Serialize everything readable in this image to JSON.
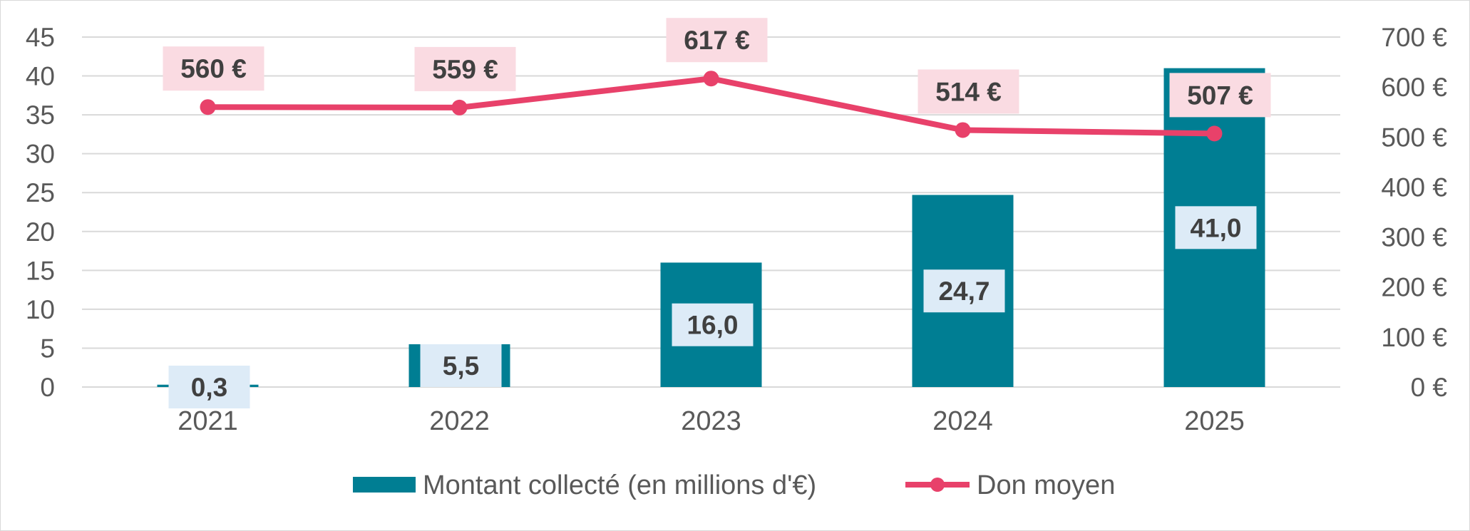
{
  "chart_data": {
    "type": "bar",
    "categories": [
      "2021",
      "2022",
      "2023",
      "2024",
      "2025"
    ],
    "series": [
      {
        "name": "Montant collecté (en millions d'€)",
        "type": "bar",
        "axis": "left",
        "values": [
          0.3,
          5.5,
          16.0,
          24.7,
          41.0
        ],
        "labels": [
          "0,3",
          "5,5",
          "16,0",
          "24,7",
          "41,0"
        ],
        "color": "#007E93",
        "label_bg": "#DDEBF7"
      },
      {
        "name": "Don moyen",
        "type": "line",
        "axis": "right",
        "values": [
          560,
          559,
          617,
          514,
          507
        ],
        "labels": [
          "560 €",
          "559 €",
          "617 €",
          "514 €",
          "507 €"
        ],
        "color": "#E8416A",
        "label_bg": "#FADBE2"
      }
    ],
    "y_left": {
      "ylim": [
        0,
        45
      ],
      "ticks": [
        "0",
        "5",
        "10",
        "15",
        "20",
        "25",
        "30",
        "35",
        "40",
        "45"
      ]
    },
    "y_right": {
      "ylim": [
        0,
        700
      ],
      "ticks": [
        "0 €",
        "100 €",
        "200 €",
        "300 €",
        "400 €",
        "500 €",
        "600 €",
        "700 €"
      ]
    },
    "grid": true,
    "legend_position": "bottom",
    "colors": {
      "grid": "#D9D9D9",
      "axis_text": "#595959",
      "label_text": "#404040"
    }
  }
}
